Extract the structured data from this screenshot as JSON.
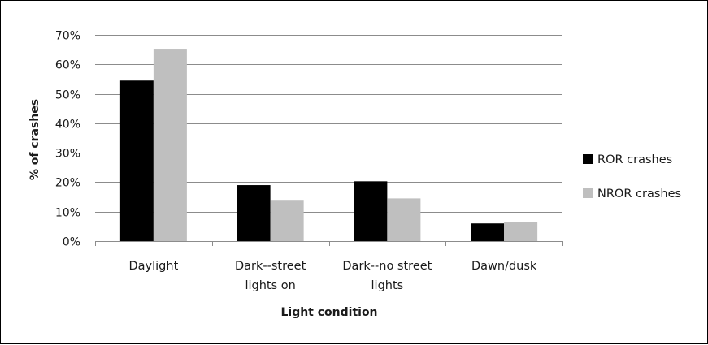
{
  "chart_data": {
    "type": "bar",
    "xlabel": "Light condition",
    "ylabel": "% of crashes",
    "ylim": [
      0,
      70
    ],
    "y_ticks": [
      "0%",
      "10%",
      "20%",
      "30%",
      "40%",
      "50%",
      "60%",
      "70%"
    ],
    "y_unit": "%",
    "grid": true,
    "legend_position": "right",
    "categories": [
      [
        "Daylight"
      ],
      [
        "Dark--street",
        "lights on"
      ],
      [
        "Dark--no street",
        "lights"
      ],
      [
        "Dawn/dusk"
      ]
    ],
    "series": [
      {
        "name": "ROR crashes",
        "color": "#000000",
        "values": [
          54.5,
          19.0,
          20.3,
          6.0
        ]
      },
      {
        "name": "NROR crashes",
        "color": "#bfbfbf",
        "values": [
          65.3,
          14.0,
          14.5,
          6.5
        ]
      }
    ]
  }
}
